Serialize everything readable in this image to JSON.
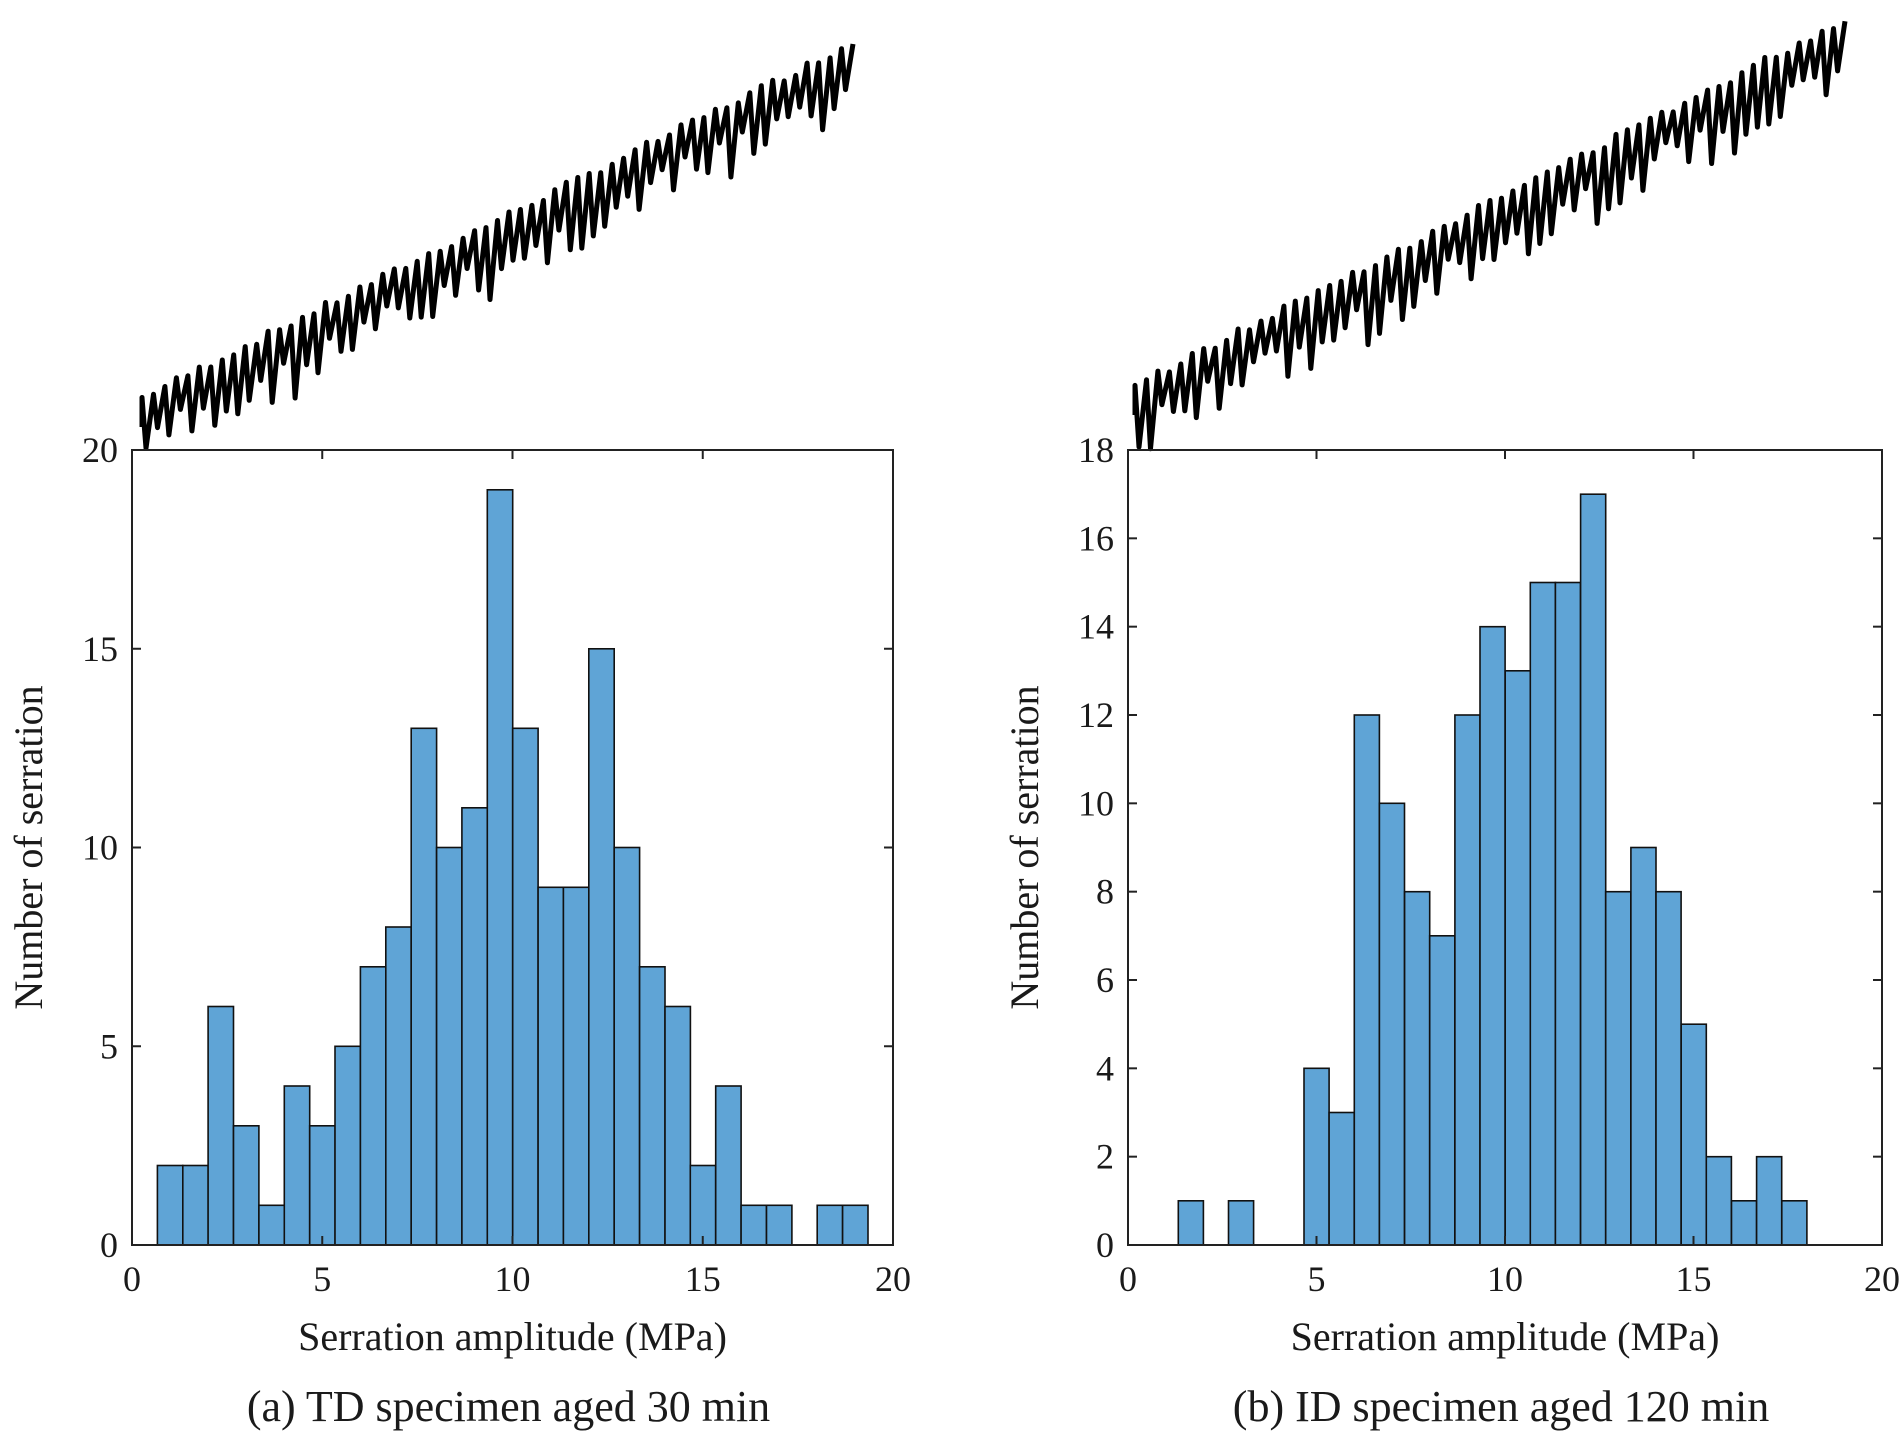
{
  "colors": {
    "bar_fill": "#5fa4d6",
    "bar_edge": "#111111",
    "axis": "#222222",
    "trace": "#000000"
  },
  "chart_data": [
    {
      "type": "bar",
      "caption": "(a) TD specimen aged 30 min",
      "xlabel": "Serration amplitude (MPa)",
      "ylabel": "Number of serration",
      "xlim": [
        0,
        20
      ],
      "ylim": [
        0,
        20
      ],
      "xticks": [
        0,
        5,
        10,
        15,
        20
      ],
      "yticks": [
        0,
        5,
        10,
        15,
        20
      ],
      "bin_width": 0.667,
      "bin_start": 0.667,
      "values": [
        2,
        2,
        6,
        3,
        1,
        4,
        3,
        5,
        7,
        8,
        13,
        10,
        11,
        19,
        13,
        9,
        9,
        15,
        10,
        7,
        6,
        2,
        4,
        1,
        1,
        0,
        1,
        1
      ],
      "grid": false,
      "inset": "serrated stress–strain trace above the histogram, no axes"
    },
    {
      "type": "bar",
      "caption": "(b) ID specimen aged 120 min",
      "xlabel": "Serration amplitude (MPa)",
      "ylabel": "Number of serration",
      "xlim": [
        0,
        20
      ],
      "ylim": [
        0,
        18
      ],
      "xticks": [
        0,
        5,
        10,
        15,
        20
      ],
      "yticks": [
        0,
        2,
        4,
        6,
        8,
        10,
        12,
        14,
        16,
        18
      ],
      "bin_width": 0.667,
      "bin_start": 1.333,
      "values": [
        1,
        0,
        1,
        0,
        0,
        4,
        3,
        12,
        10,
        8,
        7,
        12,
        14,
        13,
        15,
        15,
        17,
        8,
        9,
        8,
        5,
        2,
        1,
        2,
        1
      ],
      "grid": false,
      "inset": "serrated stress–strain trace above the histogram, no axes"
    }
  ]
}
